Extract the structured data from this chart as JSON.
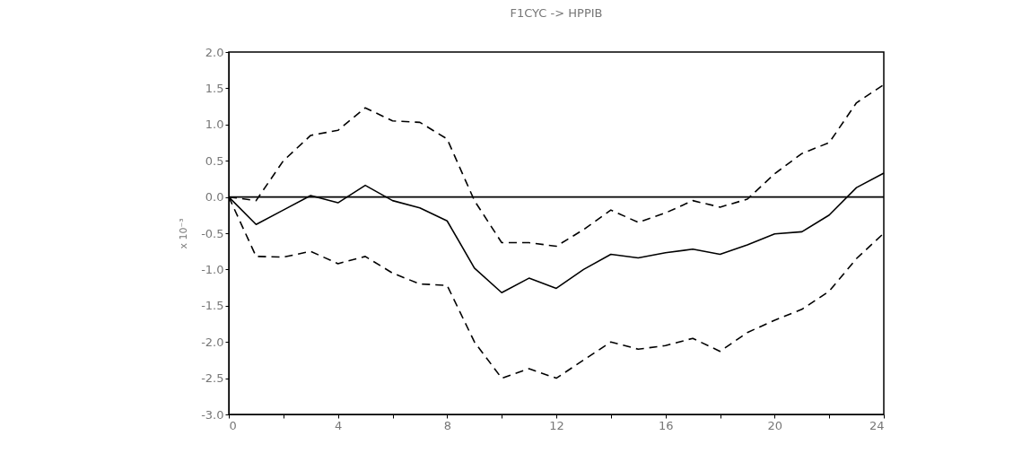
{
  "chart_data": {
    "type": "line",
    "title": "F1CYC -> HPPIB",
    "ylabel": "x 10⁻³",
    "x": [
      0,
      1,
      2,
      3,
      4,
      5,
      6,
      7,
      8,
      9,
      10,
      11,
      12,
      13,
      14,
      15,
      16,
      17,
      18,
      19,
      20,
      21,
      22,
      23,
      24
    ],
    "series": [
      {
        "color": "#000000",
        "line_style": "solid",
        "values": [
          0,
          -0.38,
          -0.18,
          0.02,
          -0.08,
          0.16,
          -0.05,
          -0.15,
          -0.33,
          -0.98,
          -1.32,
          -1.12,
          -1.26,
          -1.0,
          -0.79,
          -0.84,
          -0.77,
          -0.72,
          -0.79,
          -0.66,
          -0.51,
          -0.48,
          -0.25,
          0.13,
          0.33
        ]
      },
      {
        "color": "#000000",
        "line_style": "dashed",
        "values": [
          0,
          -0.05,
          0.5,
          0.85,
          0.92,
          1.23,
          1.05,
          1.03,
          0.8,
          -0.05,
          -0.63,
          -0.63,
          -0.68,
          -0.45,
          -0.18,
          -0.35,
          -0.22,
          -0.05,
          -0.14,
          -0.03,
          0.32,
          0.6,
          0.75,
          1.3,
          1.55
        ]
      },
      {
        "color": "#000000",
        "line_style": "dashed",
        "values": [
          0,
          -0.82,
          -0.83,
          -0.75,
          -0.92,
          -0.82,
          -1.05,
          -1.2,
          -1.22,
          -2.0,
          -2.5,
          -2.37,
          -2.5,
          -2.25,
          -2.0,
          -2.1,
          -2.05,
          -1.95,
          -2.13,
          -1.87,
          -1.7,
          -1.55,
          -1.3,
          -0.85,
          -0.5
        ]
      }
    ],
    "xlim": [
      0,
      24
    ],
    "xticks": [
      0,
      {
        "value": 2,
        "label": null
      },
      4,
      {
        "value": 6,
        "label": null
      },
      8,
      {
        "value": 10,
        "label": null
      },
      12,
      {
        "value": 14,
        "label": null
      },
      16,
      {
        "value": 18,
        "label": null
      },
      20,
      {
        "value": 22,
        "label": null
      },
      24
    ],
    "ylim": [
      -3,
      2
    ],
    "yticks": [
      {
        "value": -3,
        "label": "-3.0"
      },
      {
        "value": -2.5,
        "label": "-2.5"
      },
      {
        "value": -2,
        "label": "-2.0"
      },
      {
        "value": -1.5,
        "label": "-1.5"
      },
      {
        "value": -1,
        "label": "-1.0"
      },
      {
        "value": -0.5,
        "label": "-0.5"
      },
      {
        "value": 0,
        "label": "0.0"
      },
      {
        "value": 0.5,
        "label": "0.5"
      },
      {
        "value": 1,
        "label": "1.0"
      },
      {
        "value": 1.5,
        "label": "1.5"
      },
      {
        "value": 2,
        "label": "2.0"
      }
    ],
    "ref_lines": [
      {
        "axis": "y",
        "value": 0,
        "color": "#000000"
      }
    ],
    "grid": false,
    "legend": false
  }
}
